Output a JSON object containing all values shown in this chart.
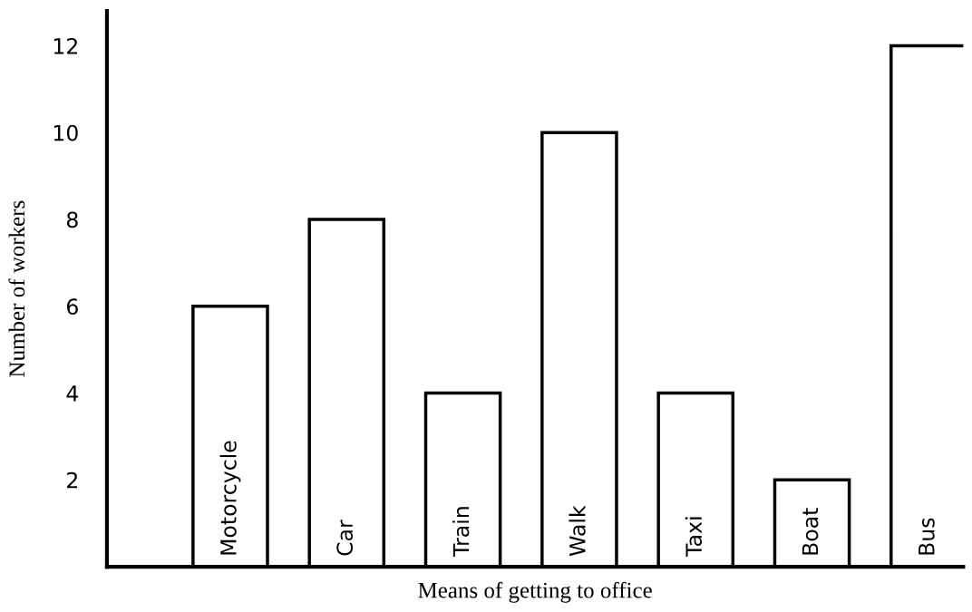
{
  "chart_data": {
    "type": "bar",
    "xlabel": "Means of getting to office",
    "ylabel": "Number of workers",
    "categories": [
      "Motorcycle",
      "Car",
      "Train",
      "Walk",
      "Taxi",
      "Boat",
      "Bus"
    ],
    "values": [
      6,
      8,
      4,
      10,
      4,
      2,
      12
    ],
    "color": "#ffffff",
    "ylim": [
      0,
      12.8
    ],
    "yticks": [
      2,
      4,
      6,
      8,
      10,
      12
    ],
    "grid": false
  }
}
